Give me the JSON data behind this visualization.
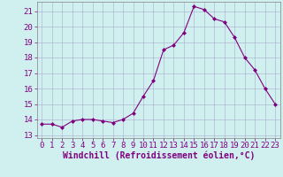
{
  "x": [
    0,
    1,
    2,
    3,
    4,
    5,
    6,
    7,
    8,
    9,
    10,
    11,
    12,
    13,
    14,
    15,
    16,
    17,
    18,
    19,
    20,
    21,
    22,
    23
  ],
  "y": [
    13.7,
    13.7,
    13.5,
    13.9,
    14.0,
    14.0,
    13.9,
    13.8,
    14.0,
    14.4,
    15.5,
    16.5,
    18.5,
    18.8,
    19.6,
    21.3,
    21.1,
    20.5,
    20.3,
    19.3,
    18.0,
    17.2,
    16.0,
    15.0
  ],
  "line_color": "#800080",
  "marker": "D",
  "marker_size": 2.0,
  "bg_color": "#d0f0f0",
  "grid_color": "#aaaacc",
  "xlabel": "Windchill (Refroidissement éolien,°C)",
  "xlim": [
    -0.5,
    23.5
  ],
  "ylim": [
    12.8,
    21.6
  ],
  "yticks": [
    13,
    14,
    15,
    16,
    17,
    18,
    19,
    20,
    21
  ],
  "xticks": [
    0,
    1,
    2,
    3,
    4,
    5,
    6,
    7,
    8,
    9,
    10,
    11,
    12,
    13,
    14,
    15,
    16,
    17,
    18,
    19,
    20,
    21,
    22,
    23
  ],
  "font_color": "#800080",
  "tick_font_size": 6.5,
  "xlabel_font_size": 7.0
}
